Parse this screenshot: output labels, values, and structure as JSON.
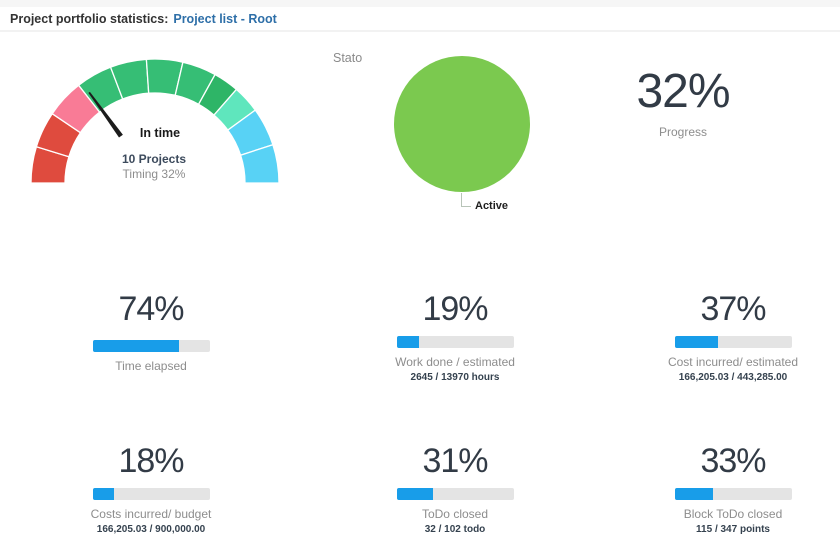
{
  "header": {
    "title_prefix": "Project portfolio statistics:",
    "title_link": "Project list - Root"
  },
  "gauge": {
    "pointer_label": "In time",
    "projects": "10 Projects",
    "caption": "Timing 32%",
    "needle_angle": 126,
    "segments": [
      {
        "from": 180,
        "to": 163,
        "color": "#df4b3e"
      },
      {
        "from": 163,
        "to": 146,
        "color": "#df4b3e"
      },
      {
        "from": 146,
        "to": 128,
        "color": "#f97b96"
      },
      {
        "from": 128,
        "to": 111,
        "color": "#36be75"
      },
      {
        "from": 111,
        "to": 94,
        "color": "#36be75"
      },
      {
        "from": 94,
        "to": 77,
        "color": "#36be75"
      },
      {
        "from": 77,
        "to": 61,
        "color": "#36be75"
      },
      {
        "from": 61,
        "to": 49,
        "color": "#2eb567"
      },
      {
        "from": 49,
        "to": 36,
        "color": "#5fe6bd"
      },
      {
        "from": 36,
        "to": 18,
        "color": "#58d2f5"
      },
      {
        "from": 18,
        "to": 0,
        "color": "#58d2f5"
      }
    ]
  },
  "pie": {
    "title": "Stato",
    "slice_label": "Active"
  },
  "progress_card": {
    "value": "32%",
    "label": "Progress"
  },
  "kpis": [
    {
      "value": "74%",
      "percent": 74,
      "label": "Time elapsed",
      "caption": ""
    },
    {
      "value": "19%",
      "percent": 19,
      "label": "Work done / estimated",
      "caption": "2645 / 13970 hours"
    },
    {
      "value": "37%",
      "percent": 37,
      "label": "Cost incurred/ estimated",
      "caption": "166,205.03 / 443,285.00"
    },
    {
      "value": "18%",
      "percent": 18,
      "label": "Costs incurred/ budget",
      "caption": "166,205.03 / 900,000.00"
    },
    {
      "value": "31%",
      "percent": 31,
      "label": "ToDo closed",
      "caption": "32 / 102 todo"
    },
    {
      "value": "33%",
      "percent": 33,
      "label": "Block ToDo closed",
      "caption": "115 / 347 points"
    }
  ],
  "colors": {
    "bar_blue": "#189de9",
    "bar_track": "#e4e4e4",
    "pie_green": "#7bc94f",
    "link_blue": "#2e6fa8",
    "value_text": "#323b46",
    "label_gray": "#8d8d8d"
  },
  "chart_data": [
    {
      "type": "gauge",
      "title": "Timing",
      "pointer_label": "In time",
      "detail": "10 Projects",
      "caption": "Timing 32%",
      "value": 32,
      "range": [
        0,
        100
      ],
      "zones": [
        "red",
        "red",
        "pink",
        "green",
        "green",
        "green",
        "green",
        "green-dark",
        "mint",
        "cyan",
        "cyan"
      ]
    },
    {
      "type": "pie",
      "title": "Stato",
      "slices": [
        {
          "label": "Active",
          "value": 100,
          "color": "#7bc94f"
        }
      ]
    },
    {
      "type": "card",
      "label": "Progress",
      "value": 32,
      "unit": "%"
    },
    {
      "type": "bar",
      "label": "Time elapsed",
      "value": 74,
      "unit": "%"
    },
    {
      "type": "bar",
      "label": "Work done / estimated",
      "value": 19,
      "unit": "%",
      "caption": "2645 / 13970 hours"
    },
    {
      "type": "bar",
      "label": "Cost incurred/ estimated",
      "value": 37,
      "unit": "%",
      "caption": "166,205.03 / 443,285.00"
    },
    {
      "type": "bar",
      "label": "Costs incurred/ budget",
      "value": 18,
      "unit": "%",
      "caption": "166,205.03 / 900,000.00"
    },
    {
      "type": "bar",
      "label": "ToDo closed",
      "value": 31,
      "unit": "%",
      "caption": "32 / 102 todo"
    },
    {
      "type": "bar",
      "label": "Block ToDo closed",
      "value": 33,
      "unit": "%",
      "caption": "115 / 347 points"
    }
  ]
}
